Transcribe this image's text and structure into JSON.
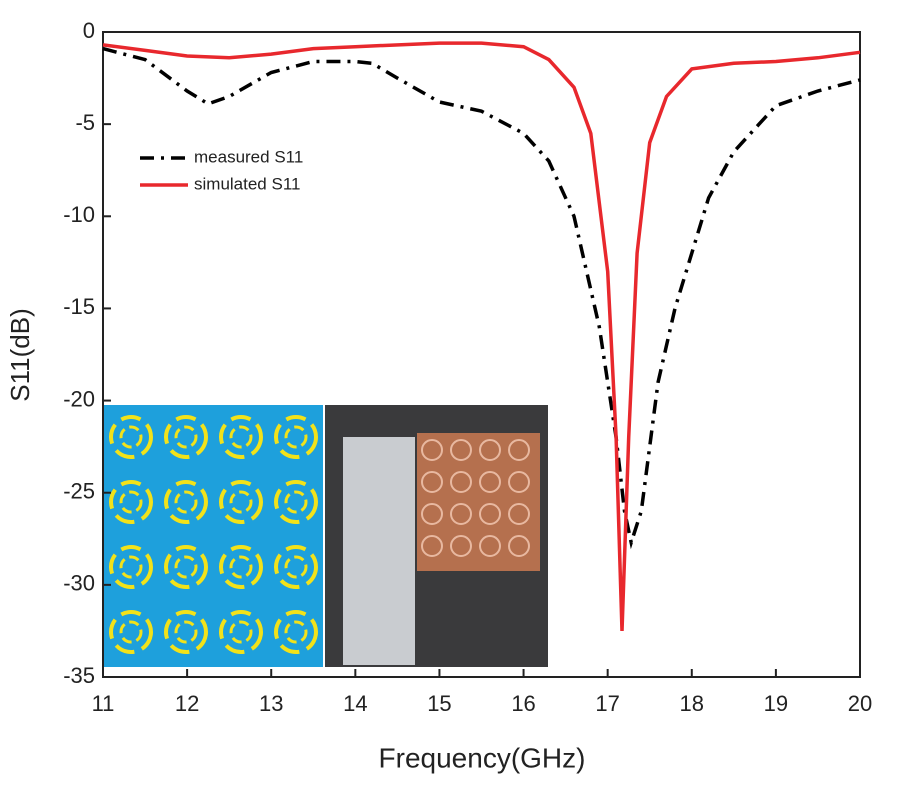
{
  "chart_data": {
    "type": "line",
    "x_label": "Frequency(GHz)",
    "y_label": "S11(dB)",
    "xlim": [
      11,
      20
    ],
    "ylim": [
      -35,
      0
    ],
    "xticks": [
      11,
      12,
      13,
      14,
      15,
      16,
      17,
      18,
      19,
      20
    ],
    "yticks": [
      0,
      -5,
      -10,
      -15,
      -20,
      -25,
      -30,
      -35
    ],
    "legend": "upper left",
    "series": [
      {
        "name": "measured S11",
        "color": "#000000",
        "dash": "dash-dot",
        "x": [
          11,
          11.5,
          12,
          12.25,
          12.5,
          13,
          13.5,
          14,
          14.2,
          14.5,
          15,
          15.5,
          16,
          16.3,
          16.6,
          16.9,
          17.1,
          17.2,
          17.28,
          17.4,
          17.6,
          17.8,
          18,
          18.2,
          18.5,
          18.8,
          19,
          19.5,
          20
        ],
        "values": [
          -0.9,
          -1.5,
          -3.2,
          -3.9,
          -3.5,
          -2.2,
          -1.6,
          -1.6,
          -1.7,
          -2.5,
          -3.8,
          -4.3,
          -5.5,
          -7,
          -10,
          -16,
          -22,
          -26,
          -27.7,
          -26,
          -19,
          -15,
          -12,
          -9,
          -6.5,
          -5,
          -4,
          -3.2,
          -2.6
        ]
      },
      {
        "name": "simulated S11",
        "color": "#e8282d",
        "dash": "solid",
        "x": [
          11,
          11.5,
          12,
          12.5,
          13,
          13.5,
          14,
          15,
          15.5,
          16,
          16.3,
          16.6,
          16.8,
          17,
          17.1,
          17.17,
          17.25,
          17.35,
          17.5,
          17.7,
          18,
          18.5,
          19,
          19.5,
          20
        ],
        "values": [
          -0.7,
          -1,
          -1.3,
          -1.4,
          -1.2,
          -0.9,
          -0.8,
          -0.6,
          -0.6,
          -0.8,
          -1.5,
          -3,
          -5.5,
          -13,
          -22,
          -32.5,
          -22,
          -12,
          -6,
          -3.5,
          -2,
          -1.7,
          -1.6,
          -1.4,
          -1.1
        ]
      }
    ]
  }
}
